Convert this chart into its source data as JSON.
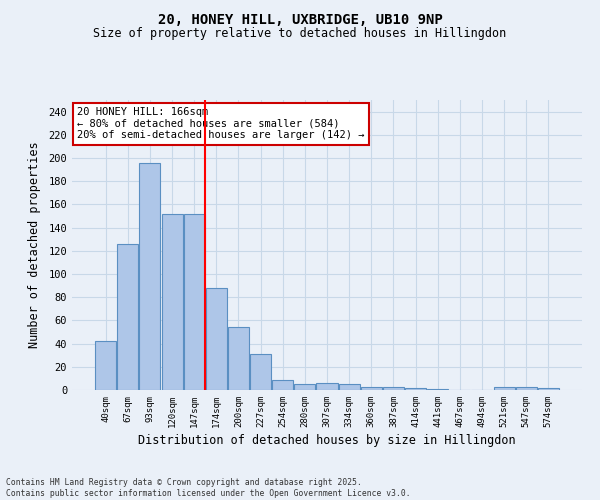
{
  "title_line1": "20, HONEY HILL, UXBRIDGE, UB10 9NP",
  "title_line2": "Size of property relative to detached houses in Hillingdon",
  "xlabel": "Distribution of detached houses by size in Hillingdon",
  "ylabel": "Number of detached properties",
  "categories": [
    "40sqm",
    "67sqm",
    "93sqm",
    "120sqm",
    "147sqm",
    "174sqm",
    "200sqm",
    "227sqm",
    "254sqm",
    "280sqm",
    "307sqm",
    "334sqm",
    "360sqm",
    "387sqm",
    "414sqm",
    "441sqm",
    "467sqm",
    "494sqm",
    "521sqm",
    "547sqm",
    "574sqm"
  ],
  "values": [
    42,
    126,
    196,
    152,
    152,
    88,
    54,
    31,
    9,
    5,
    6,
    5,
    3,
    3,
    2,
    1,
    0,
    0,
    3,
    3,
    2
  ],
  "bar_color": "#aec6e8",
  "bar_edge_color": "#5a8fc2",
  "red_line_index": 5,
  "annotation_text": "20 HONEY HILL: 166sqm\n← 80% of detached houses are smaller (584)\n20% of semi-detached houses are larger (142) →",
  "annotation_box_color": "#ffffff",
  "annotation_box_edge_color": "#cc0000",
  "ylim": [
    0,
    250
  ],
  "yticks": [
    0,
    20,
    40,
    60,
    80,
    100,
    120,
    140,
    160,
    180,
    200,
    220,
    240
  ],
  "grid_color": "#c8d8e8",
  "background_color": "#eaf0f8",
  "footer_line1": "Contains HM Land Registry data © Crown copyright and database right 2025.",
  "footer_line2": "Contains public sector information licensed under the Open Government Licence v3.0."
}
